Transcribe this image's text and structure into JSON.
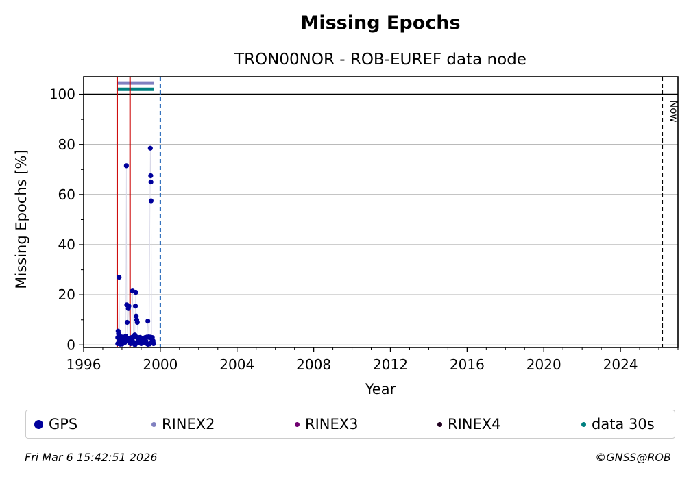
{
  "chart_data": {
    "type": "scatter",
    "title": "Missing Epochs",
    "subtitle": "TRON00NOR - ROB-EUREF data node",
    "xlabel": "Year",
    "ylabel": "Missing Epochs [%]",
    "xlim": [
      1996.0,
      2027.0
    ],
    "ylim": [
      -1,
      107
    ],
    "xticks": [
      1996,
      2000,
      2004,
      2008,
      2012,
      2016,
      2020,
      2024
    ],
    "yticks": [
      0,
      20,
      40,
      60,
      80,
      100
    ],
    "grid": "horizontal",
    "reference_line_y": 100,
    "now_line_x": 2026.18,
    "now_label": "Now",
    "end_line_x": 2000.0,
    "event_lines_x": [
      1997.75,
      1998.42
    ],
    "rinex2_bar": {
      "y": 104.5,
      "x": [
        1997.75,
        1999.68
      ]
    },
    "data30s_bar": {
      "y": 102,
      "x": [
        1997.75,
        1999.68
      ]
    },
    "series": [
      {
        "name": "GPS",
        "color": "#00009c",
        "points": [
          [
            1997.78,
            0.5
          ],
          [
            1997.8,
            5.5
          ],
          [
            1997.82,
            4.5
          ],
          [
            1997.85,
            27
          ],
          [
            1997.88,
            2
          ],
          [
            1997.92,
            1
          ],
          [
            1997.97,
            0.5
          ],
          [
            1998.02,
            1.5
          ],
          [
            1998.08,
            0.8
          ],
          [
            1998.15,
            1
          ],
          [
            1998.2,
            3.5
          ],
          [
            1998.23,
            71.5
          ],
          [
            1998.25,
            16
          ],
          [
            1998.27,
            9
          ],
          [
            1998.3,
            2
          ],
          [
            1998.33,
            14.5
          ],
          [
            1998.36,
            15.5
          ],
          [
            1998.4,
            1
          ],
          [
            1998.45,
            0.5
          ],
          [
            1998.5,
            2
          ],
          [
            1998.55,
            21.5
          ],
          [
            1998.6,
            3
          ],
          [
            1998.63,
            1
          ],
          [
            1998.67,
            4
          ],
          [
            1998.7,
            15.5
          ],
          [
            1998.72,
            21
          ],
          [
            1998.74,
            11.5
          ],
          [
            1998.77,
            10
          ],
          [
            1998.8,
            9
          ],
          [
            1998.85,
            2.5
          ],
          [
            1998.9,
            1
          ],
          [
            1998.95,
            3
          ],
          [
            1999.0,
            0.5
          ],
          [
            1999.05,
            2
          ],
          [
            1999.1,
            1
          ],
          [
            1999.15,
            0.8
          ],
          [
            1999.2,
            2
          ],
          [
            1999.25,
            1.5
          ],
          [
            1999.3,
            0.5
          ],
          [
            1999.35,
            9.5
          ],
          [
            1999.42,
            3
          ],
          [
            1999.48,
            78.5
          ],
          [
            1999.5,
            67.5
          ],
          [
            1999.51,
            65
          ],
          [
            1999.52,
            57.5
          ],
          [
            1999.55,
            2.5
          ],
          [
            1999.6,
            1
          ],
          [
            1999.65,
            0.5
          ]
        ]
      },
      {
        "name": "RINEX2",
        "color": "#8080c0"
      },
      {
        "name": "RINEX3",
        "color": "#700070"
      },
      {
        "name": "RINEX4",
        "color": "#200020"
      },
      {
        "name": "data 30s",
        "color": "#008080"
      }
    ]
  },
  "footer": {
    "timestamp": "Fri Mar  6 15:42:51 2026",
    "copyright": "©GNSS@ROB"
  }
}
